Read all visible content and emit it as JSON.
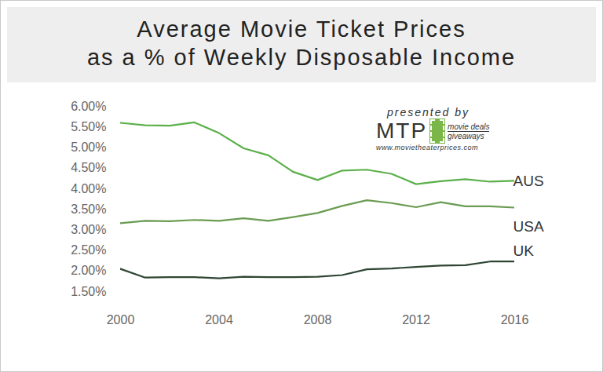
{
  "chart_data": {
    "type": "line",
    "title": "Average Movie Ticket Prices\nas a % of Weekly Disposable Income",
    "annotations": [
      "presented by",
      "MTP",
      "movie deals",
      "giveaways",
      "www.movietheaterprices.com"
    ],
    "x": [
      2000,
      2001,
      2002,
      2003,
      2004,
      2005,
      2006,
      2007,
      2008,
      2009,
      2010,
      2011,
      2012,
      2013,
      2014,
      2015,
      2016
    ],
    "series": [
      {
        "name": "AUS",
        "color": "#5bb04a",
        "values": [
          5.6,
          5.54,
          5.53,
          5.61,
          5.35,
          4.98,
          4.81,
          4.41,
          4.21,
          4.44,
          4.46,
          4.36,
          4.11,
          4.18,
          4.23,
          4.17,
          4.19
        ]
      },
      {
        "name": "USA",
        "color": "#6a9c52",
        "values": [
          3.16,
          3.22,
          3.21,
          3.24,
          3.22,
          3.28,
          3.22,
          3.31,
          3.41,
          3.58,
          3.72,
          3.65,
          3.55,
          3.67,
          3.57,
          3.57,
          3.54
        ]
      },
      {
        "name": "UK",
        "color": "#2f4634",
        "values": [
          2.05,
          1.84,
          1.85,
          1.85,
          1.82,
          1.86,
          1.85,
          1.85,
          1.86,
          1.9,
          2.04,
          2.06,
          2.1,
          2.13,
          2.14,
          2.23,
          2.23
        ]
      }
    ],
    "xlim": [
      2000,
      2016
    ],
    "xticks": [
      2000,
      2004,
      2008,
      2012,
      2016
    ],
    "ylim": [
      1.5,
      6.0
    ],
    "yticks": [
      {
        "value": 1.5,
        "label": "1.50%"
      },
      {
        "value": 2.0,
        "label": "2.00%"
      },
      {
        "value": 2.5,
        "label": "2.50%"
      },
      {
        "value": 3.0,
        "label": "3.00%"
      },
      {
        "value": 3.5,
        "label": "3.50%"
      },
      {
        "value": 4.0,
        "label": "4.00%"
      },
      {
        "value": 4.5,
        "label": "4.50%"
      },
      {
        "value": 5.0,
        "label": "5.00%"
      },
      {
        "value": 5.5,
        "label": "5.50%"
      },
      {
        "value": 6.0,
        "label": "6.00%"
      }
    ],
    "grid": false
  }
}
